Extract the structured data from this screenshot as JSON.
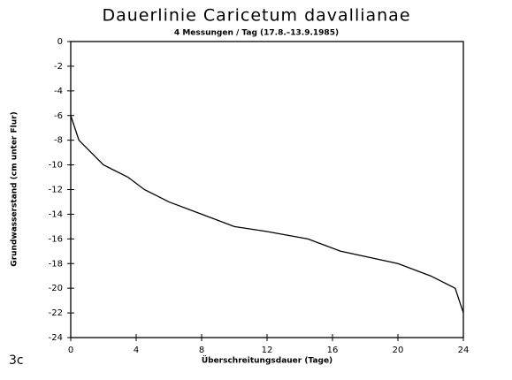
{
  "chart_data": {
    "type": "line",
    "title": "Dauerlinie Caricetum davallianae",
    "subtitle": "4 Messungen / Tag (17.8.–13.9.1985)",
    "x_label": "Überschreitungsdauer (Tage)",
    "y_label": "Grundwasserstand (cm unter Flur)",
    "figure_label": "3c",
    "x": [
      0,
      0.5,
      2,
      3.5,
      4.5,
      6,
      8,
      10,
      12,
      14.5,
      16.5,
      20,
      22,
      23.5,
      24
    ],
    "series": [
      {
        "color": "#000000",
        "values": [
          -6,
          -8,
          -10,
          -11,
          -12,
          -13,
          -14,
          -15,
          -15.4,
          -16,
          -17,
          -18,
          -19,
          -20,
          -22
        ]
      }
    ],
    "xlim": [
      0,
      24
    ],
    "xticks": [
      0,
      4,
      8,
      12,
      16,
      20,
      24
    ],
    "ylim": [
      -24,
      0
    ],
    "yticks": [
      0,
      -2,
      -4,
      -6,
      -8,
      -10,
      -12,
      -14,
      -16,
      -18,
      -20,
      -22,
      -24
    ],
    "grid": false
  }
}
